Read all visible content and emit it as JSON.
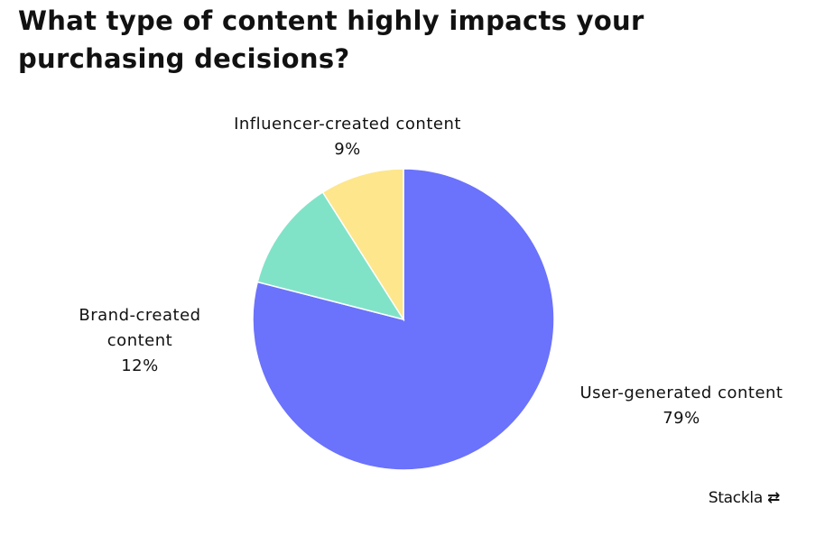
{
  "chart_data": {
    "type": "pie",
    "title": "What type of content highly impacts your purchasing decisions?",
    "categories": [
      "User-generated content",
      "Brand-created content",
      "Influencer-created content"
    ],
    "values": [
      79,
      12,
      9
    ],
    "value_labels": [
      "79%",
      "12%",
      "9%"
    ],
    "colors": [
      "#6b72fb",
      "#80e3c8",
      "#fde68c"
    ],
    "source": "Stackla"
  }
}
